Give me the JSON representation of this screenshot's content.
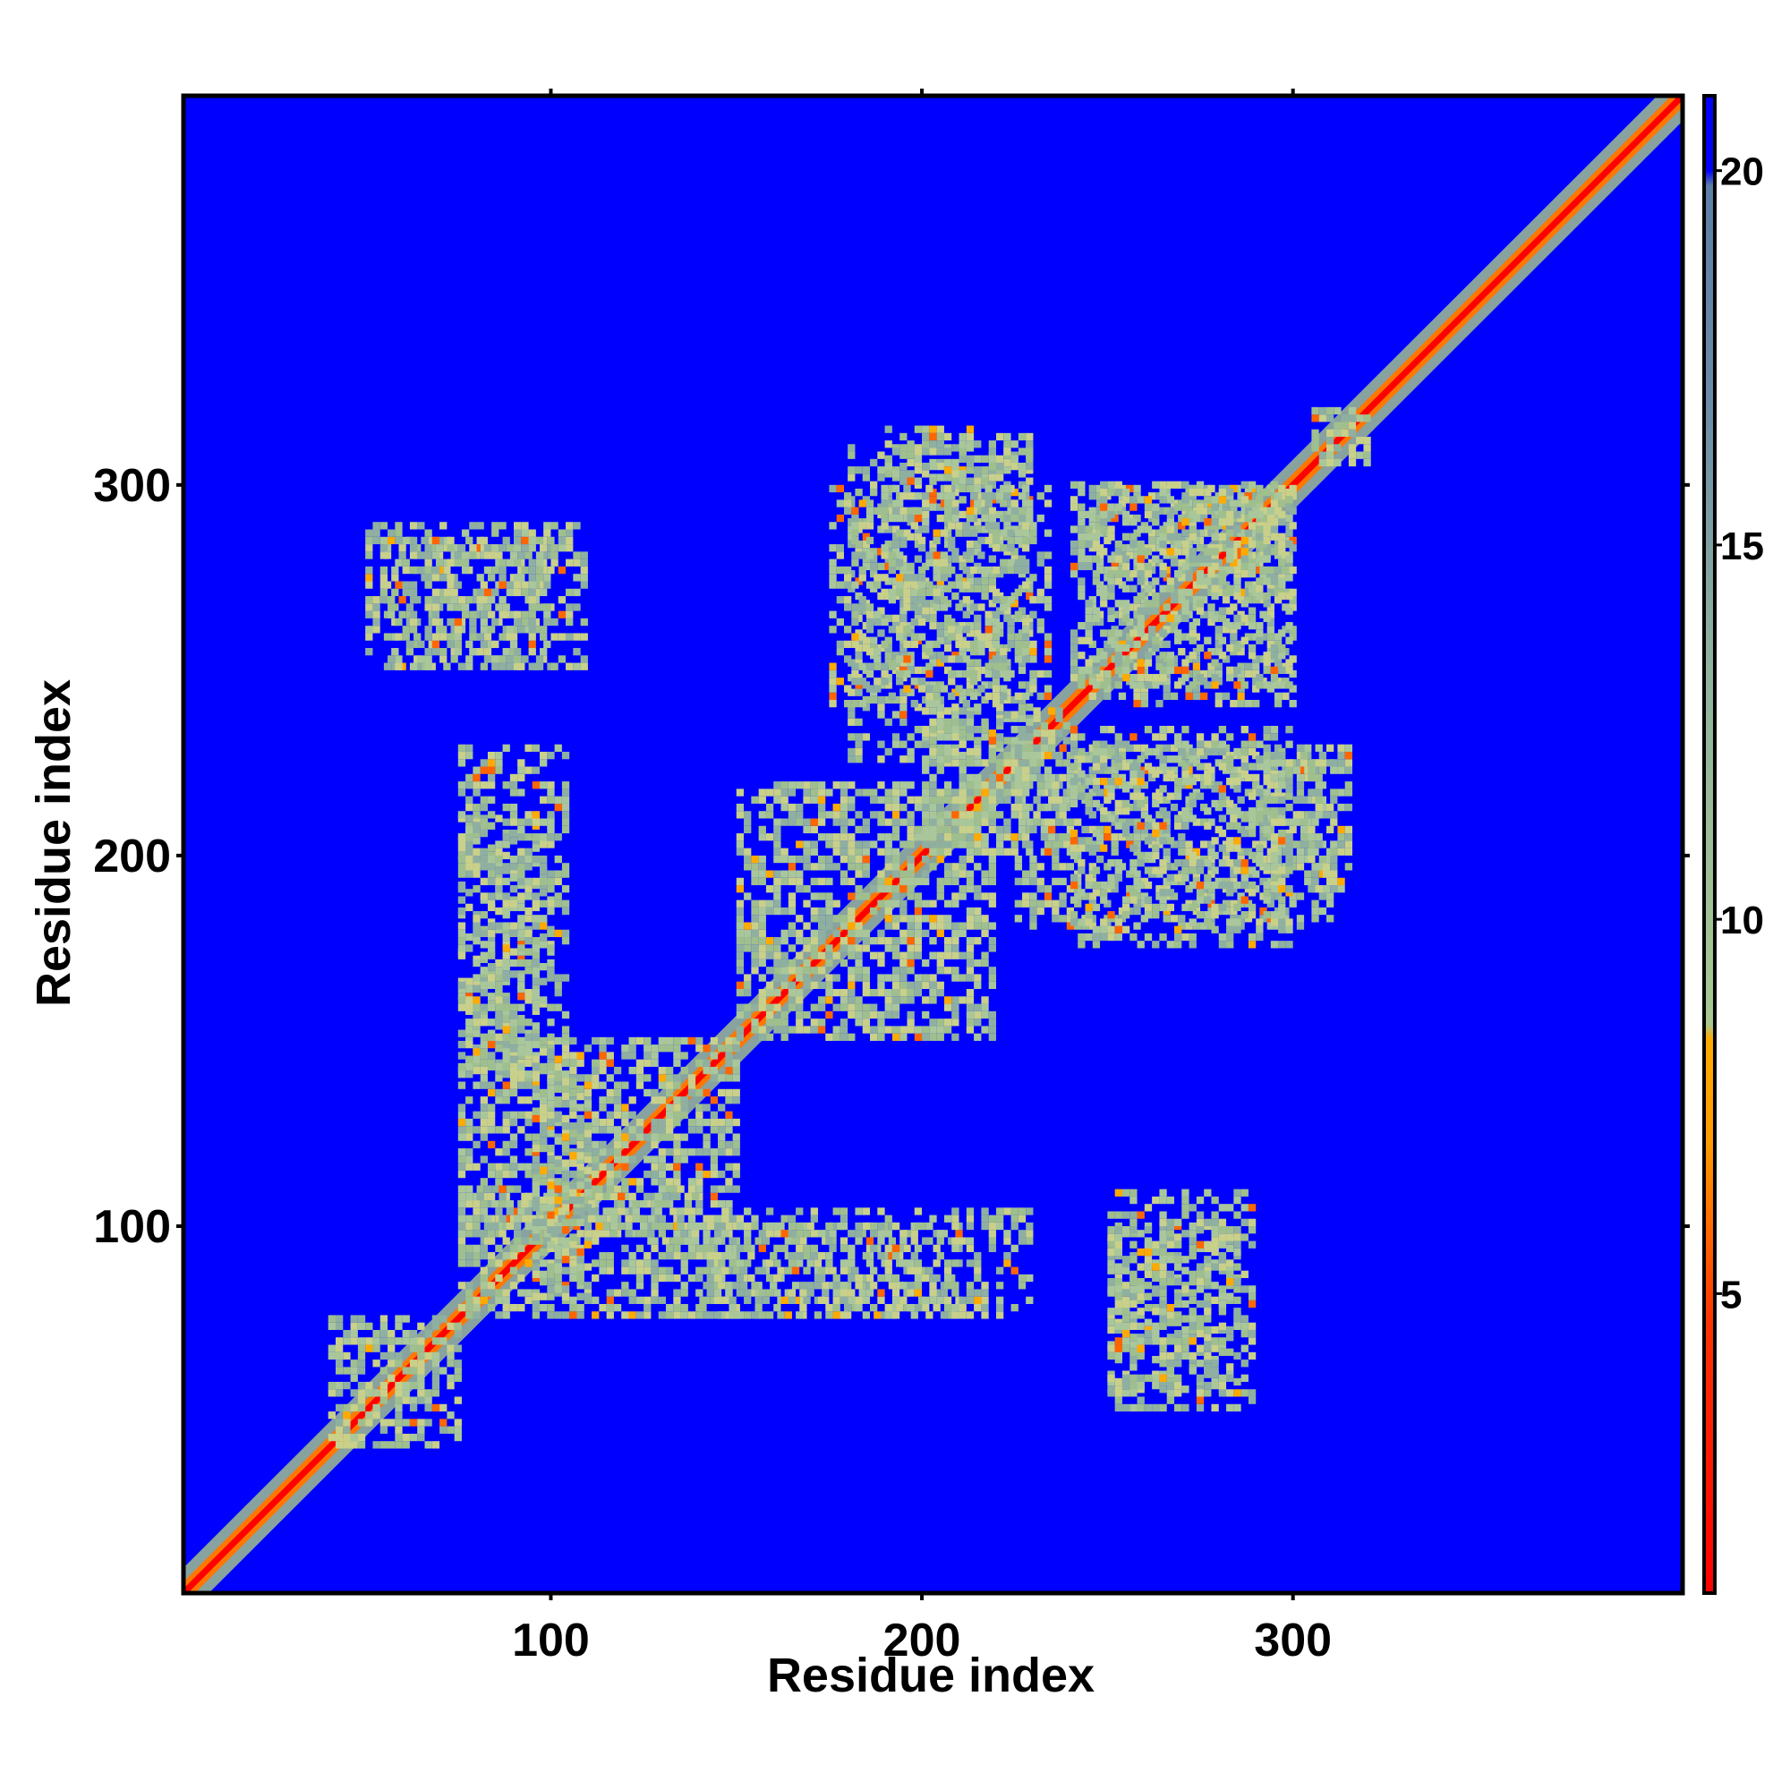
{
  "chart_data": {
    "type": "heatmap",
    "title": "",
    "xlabel": "Residue index",
    "ylabel": "Residue index",
    "xlim": [
      1,
      405
    ],
    "ylim": [
      1,
      405
    ],
    "x_ticks": [
      100,
      200,
      300
    ],
    "y_ticks": [
      100,
      200,
      300
    ],
    "x_tick_labels": [
      "100",
      "200",
      "300"
    ],
    "y_tick_labels": [
      "100",
      "200",
      "300"
    ],
    "colorbar": {
      "range": [
        1,
        21
      ],
      "ticks": [
        5,
        10,
        15,
        20
      ],
      "tick_labels": [
        "5",
        "10",
        "15",
        "20"
      ],
      "colors": {
        "low": "#ff0000",
        "mid_low": "#ff9900",
        "mid": "#9fbf8f",
        "high": "#5b7fa6",
        "background": "#0000ff"
      }
    },
    "matrix_description": "symmetric residue-residue distance map; contact regions (value below ~12) shown as red/orange/green on blue background",
    "contact_regions": [
      {
        "x": [
          1,
          405
        ],
        "y": [
          1,
          405
        ],
        "kind": "diagonal"
      },
      {
        "x": [
          40,
          75
        ],
        "y": [
          40,
          75
        ],
        "kind": "block"
      },
      {
        "x": [
          75,
          150
        ],
        "y": [
          75,
          150
        ],
        "kind": "block"
      },
      {
        "x": [
          150,
          220
        ],
        "y": [
          150,
          220
        ],
        "kind": "block"
      },
      {
        "x": [
          200,
          240
        ],
        "y": [
          200,
          240
        ],
        "kind": "block"
      },
      {
        "x": [
          270,
          300
        ],
        "y": [
          270,
          300
        ],
        "kind": "block"
      },
      {
        "x": [
          305,
          320
        ],
        "y": [
          305,
          320
        ],
        "kind": "block"
      },
      {
        "x": [
          80,
          140
        ],
        "y": [
          95,
          110
        ],
        "kind": "band"
      },
      {
        "x": [
          145,
          210
        ],
        "y": [
          75,
          100
        ],
        "kind": "band"
      },
      {
        "x": [
          75,
          105
        ],
        "y": [
          140,
          230
        ],
        "kind": "band"
      },
      {
        "x": [
          180,
          230
        ],
        "y": [
          225,
          310
        ],
        "kind": "band"
      },
      {
        "x": [
          240,
          300
        ],
        "y": [
          175,
          235
        ],
        "kind": "band"
      },
      {
        "x": [
          290,
          315
        ],
        "y": [
          190,
          230
        ],
        "kind": "band"
      },
      {
        "x": [
          250,
          285
        ],
        "y": [
          55,
          100
        ],
        "kind": "band"
      },
      {
        "x": [
          50,
          110
        ],
        "y": [
          250,
          290
        ],
        "kind": "band"
      },
      {
        "x": [
          245,
          300
        ],
        "y": [
          240,
          300
        ],
        "kind": "band"
      }
    ]
  }
}
